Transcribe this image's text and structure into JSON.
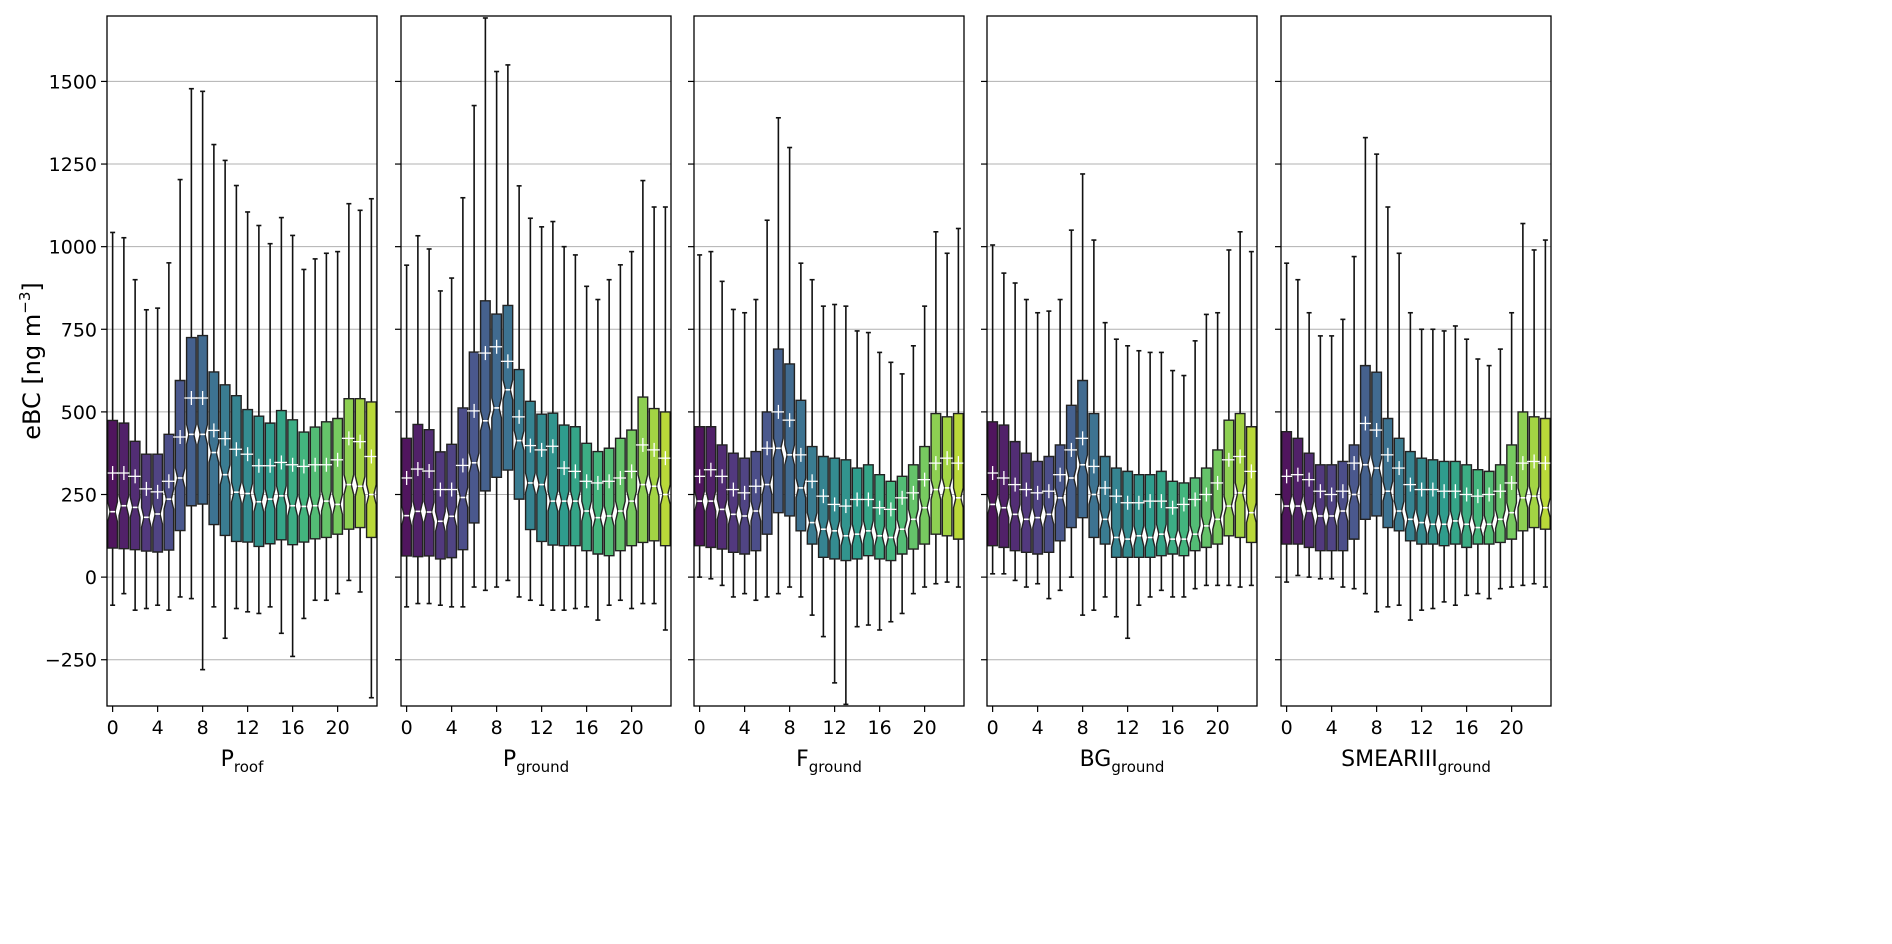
{
  "figure": {
    "ylabel": "eBC [ng m",
    "ylabel_sup": "−3",
    "ylabel_end": "]"
  },
  "chart_data": [
    {
      "type": "box",
      "title": "",
      "xlabel": {
        "main": "P",
        "sub": "roof"
      },
      "x": [
        0,
        1,
        2,
        3,
        4,
        5,
        6,
        7,
        8,
        9,
        10,
        11,
        12,
        13,
        14,
        15,
        16,
        17,
        18,
        19,
        20,
        21,
        22,
        23
      ],
      "xticks": [
        0,
        4,
        8,
        12,
        16,
        20
      ],
      "yticks": [
        -250,
        0,
        250,
        500,
        750,
        1000,
        1250,
        1500
      ],
      "ylim": [
        -390,
        1698
      ],
      "xlim": [
        -0.5,
        23.5
      ],
      "grid": "horizontal",
      "whishi": [
        1043,
        1027,
        900,
        809,
        814,
        951,
        1203,
        1478,
        1470,
        1309,
        1261,
        1185,
        1105,
        1064,
        1009,
        1088,
        1034,
        931,
        963,
        980,
        985,
        1130,
        1110,
        1145
      ],
      "q3": [
        474,
        466,
        411,
        372,
        372,
        432,
        595,
        725,
        731,
        621,
        582,
        549,
        507,
        487,
        466,
        504,
        476,
        439,
        454,
        470,
        480,
        540,
        540,
        530
      ],
      "median": [
        198,
        216,
        211,
        181,
        191,
        236,
        300,
        432,
        432,
        377,
        310,
        257,
        253,
        228,
        236,
        246,
        216,
        214,
        216,
        230,
        220,
        280,
        275,
        250
      ],
      "mean": [
        315,
        315,
        305,
        267,
        258,
        290,
        424,
        542,
        542,
        444,
        419,
        387,
        372,
        337,
        337,
        347,
        340,
        335,
        340,
        340,
        355,
        420,
        410,
        365
      ],
      "q1": [
        88,
        86,
        83,
        79,
        76,
        82,
        141,
        216,
        221,
        159,
        126,
        108,
        106,
        93,
        101,
        113,
        98,
        106,
        116,
        120,
        130,
        145,
        150,
        120
      ],
      "whislo": [
        -85,
        -50,
        -100,
        -95,
        -85,
        -100,
        -60,
        -65,
        -280,
        -90,
        -185,
        -95,
        -105,
        -110,
        -90,
        -170,
        -240,
        -125,
        -70,
        -70,
        -50,
        -10,
        -45,
        -365
      ]
    },
    {
      "type": "box",
      "title": "",
      "xlabel": {
        "main": "P",
        "sub": "ground"
      },
      "x": [
        0,
        1,
        2,
        3,
        4,
        5,
        6,
        7,
        8,
        9,
        10,
        11,
        12,
        13,
        14,
        15,
        16,
        17,
        18,
        19,
        20,
        21,
        22,
        23
      ],
      "xticks": [
        0,
        4,
        8,
        12,
        16,
        20
      ],
      "yticks": [
        -250,
        0,
        250,
        500,
        750,
        1000,
        1250,
        1500
      ],
      "ylim": [
        -390,
        1698
      ],
      "xlim": [
        -0.5,
        23.5
      ],
      "grid": "horizontal",
      "whishi": [
        944,
        1033,
        993,
        866,
        905,
        1148,
        1427,
        1692,
        1530,
        1550,
        1184,
        1086,
        1060,
        1076,
        1000,
        975,
        880,
        840,
        900,
        945,
        985,
        1200,
        1120,
        1120
      ],
      "q3": [
        420,
        462,
        446,
        379,
        402,
        512,
        681,
        836,
        796,
        822,
        628,
        532,
        493,
        496,
        460,
        455,
        405,
        380,
        390,
        420,
        445,
        545,
        510,
        500
      ],
      "median": [
        186,
        199,
        197,
        169,
        184,
        241,
        346,
        473,
        512,
        567,
        413,
        285,
        280,
        230,
        230,
        230,
        200,
        180,
        185,
        200,
        230,
        280,
        275,
        250
      ],
      "mean": [
        300,
        327,
        321,
        265,
        265,
        338,
        503,
        678,
        697,
        653,
        485,
        398,
        385,
        396,
        330,
        320,
        290,
        285,
        290,
        300,
        320,
        400,
        385,
        360
      ],
      "q1": [
        64,
        62,
        64,
        55,
        59,
        83,
        164,
        261,
        302,
        324,
        236,
        144,
        108,
        97,
        95,
        95,
        80,
        70,
        65,
        80,
        95,
        105,
        110,
        95
      ],
      "whislo": [
        -90,
        -80,
        -80,
        -85,
        -90,
        -90,
        -30,
        -40,
        -30,
        -10,
        -60,
        -70,
        -85,
        -100,
        -100,
        -95,
        -90,
        -130,
        -85,
        -70,
        -95,
        -80,
        -80,
        -160
      ]
    },
    {
      "type": "box",
      "title": "",
      "xlabel": {
        "main": "F",
        "sub": "ground"
      },
      "x": [
        0,
        1,
        2,
        3,
        4,
        5,
        6,
        7,
        8,
        9,
        10,
        11,
        12,
        13,
        14,
        15,
        16,
        17,
        18,
        19,
        20,
        21,
        22,
        23
      ],
      "xticks": [
        0,
        4,
        8,
        12,
        16,
        20
      ],
      "yticks": [
        -250,
        0,
        250,
        500,
        750,
        1000,
        1250,
        1500
      ],
      "ylim": [
        -390,
        1698
      ],
      "xlim": [
        -0.5,
        23.5
      ],
      "grid": "horizontal",
      "whishi": [
        975,
        985,
        895,
        810,
        800,
        840,
        1080,
        1390,
        1300,
        950,
        900,
        820,
        825,
        820,
        745,
        740,
        680,
        650,
        615,
        700,
        820,
        1045,
        980,
        1055
      ],
      "q3": [
        455,
        455,
        400,
        375,
        360,
        380,
        500,
        690,
        645,
        535,
        395,
        365,
        360,
        355,
        330,
        340,
        310,
        290,
        305,
        340,
        395,
        495,
        485,
        495
      ],
      "median": [
        230,
        230,
        205,
        190,
        185,
        200,
        280,
        390,
        370,
        270,
        165,
        145,
        140,
        125,
        130,
        140,
        125,
        120,
        145,
        175,
        210,
        265,
        270,
        240
      ],
      "mean": [
        305,
        325,
        305,
        265,
        255,
        275,
        390,
        500,
        475,
        370,
        290,
        245,
        220,
        215,
        235,
        235,
        210,
        205,
        240,
        255,
        295,
        345,
        360,
        345
      ],
      "q1": [
        95,
        90,
        85,
        75,
        70,
        80,
        130,
        195,
        185,
        140,
        100,
        60,
        55,
        50,
        55,
        65,
        55,
        50,
        70,
        85,
        100,
        130,
        125,
        115
      ],
      "whislo": [
        0,
        -5,
        -25,
        -60,
        -50,
        -70,
        -60,
        -50,
        -30,
        -60,
        -115,
        -180,
        -320,
        -385,
        -150,
        -145,
        -160,
        -135,
        -110,
        -50,
        -30,
        -20,
        -15,
        -30
      ]
    },
    {
      "type": "box",
      "title": "",
      "xlabel": {
        "main": "BG",
        "sub": "ground"
      },
      "x": [
        0,
        1,
        2,
        3,
        4,
        5,
        6,
        7,
        8,
        9,
        10,
        11,
        12,
        13,
        14,
        15,
        16,
        17,
        18,
        19,
        20,
        21,
        22,
        23
      ],
      "xticks": [
        0,
        4,
        8,
        12,
        16,
        20
      ],
      "yticks": [
        -250,
        0,
        250,
        500,
        750,
        1000,
        1250,
        1500
      ],
      "ylim": [
        -390,
        1698
      ],
      "xlim": [
        -0.5,
        23.5
      ],
      "grid": "horizontal",
      "whishi": [
        1005,
        920,
        890,
        840,
        800,
        805,
        840,
        1050,
        1220,
        1020,
        770,
        720,
        700,
        685,
        680,
        680,
        625,
        610,
        715,
        795,
        800,
        990,
        1045,
        985
      ],
      "q3": [
        470,
        460,
        410,
        375,
        350,
        365,
        400,
        520,
        595,
        495,
        365,
        330,
        320,
        310,
        310,
        320,
        290,
        285,
        300,
        330,
        385,
        475,
        495,
        455
      ],
      "median": [
        220,
        210,
        190,
        175,
        180,
        190,
        240,
        300,
        340,
        250,
        175,
        120,
        115,
        125,
        120,
        130,
        115,
        115,
        130,
        155,
        175,
        215,
        255,
        195
      ],
      "mean": [
        315,
        300,
        280,
        265,
        255,
        260,
        310,
        385,
        420,
        335,
        270,
        245,
        225,
        225,
        230,
        230,
        210,
        220,
        235,
        250,
        285,
        355,
        365,
        320
      ],
      "q1": [
        95,
        90,
        80,
        75,
        70,
        75,
        110,
        150,
        180,
        120,
        100,
        60,
        60,
        60,
        60,
        65,
        70,
        65,
        80,
        90,
        100,
        125,
        120,
        105
      ],
      "whislo": [
        10,
        10,
        -10,
        -30,
        -20,
        -65,
        -40,
        0,
        -115,
        -100,
        -60,
        -120,
        -185,
        -85,
        -60,
        -40,
        -60,
        -60,
        -35,
        -25,
        -25,
        -25,
        -30,
        -25
      ]
    },
    {
      "type": "box",
      "title": "",
      "xlabel": {
        "main": "SMEARIII",
        "sub": "ground"
      },
      "x": [
        0,
        1,
        2,
        3,
        4,
        5,
        6,
        7,
        8,
        9,
        10,
        11,
        12,
        13,
        14,
        15,
        16,
        17,
        18,
        19,
        20,
        21,
        22,
        23
      ],
      "xticks": [
        0,
        4,
        8,
        12,
        16,
        20
      ],
      "yticks": [
        -250,
        0,
        250,
        500,
        750,
        1000,
        1250,
        1500
      ],
      "ylim": [
        -390,
        1698
      ],
      "xlim": [
        -0.5,
        23.5
      ],
      "grid": "horizontal",
      "whishi": [
        950,
        900,
        800,
        730,
        730,
        780,
        970,
        1330,
        1280,
        1120,
        980,
        800,
        750,
        750,
        745,
        760,
        720,
        660,
        640,
        690,
        800,
        1070,
        990,
        1020
      ],
      "q3": [
        440,
        420,
        375,
        340,
        340,
        350,
        400,
        640,
        620,
        480,
        420,
        380,
        360,
        355,
        350,
        350,
        340,
        325,
        320,
        340,
        400,
        500,
        485,
        480
      ],
      "median": [
        215,
        215,
        200,
        185,
        185,
        200,
        250,
        340,
        330,
        260,
        200,
        175,
        165,
        160,
        160,
        170,
        160,
        150,
        160,
        175,
        195,
        240,
        245,
        210
      ],
      "mean": [
        305,
        310,
        295,
        260,
        250,
        260,
        345,
        465,
        445,
        370,
        330,
        280,
        265,
        265,
        260,
        260,
        250,
        245,
        250,
        260,
        285,
        345,
        350,
        345
      ],
      "q1": [
        100,
        100,
        90,
        80,
        80,
        80,
        115,
        175,
        185,
        150,
        140,
        110,
        100,
        100,
        95,
        100,
        90,
        100,
        100,
        105,
        115,
        140,
        150,
        145
      ],
      "whislo": [
        -15,
        5,
        0,
        -5,
        -5,
        -30,
        -35,
        -50,
        -105,
        -90,
        -85,
        -130,
        -100,
        -95,
        -75,
        -85,
        -55,
        -50,
        -65,
        -35,
        -30,
        -25,
        -20,
        -30
      ]
    }
  ]
}
